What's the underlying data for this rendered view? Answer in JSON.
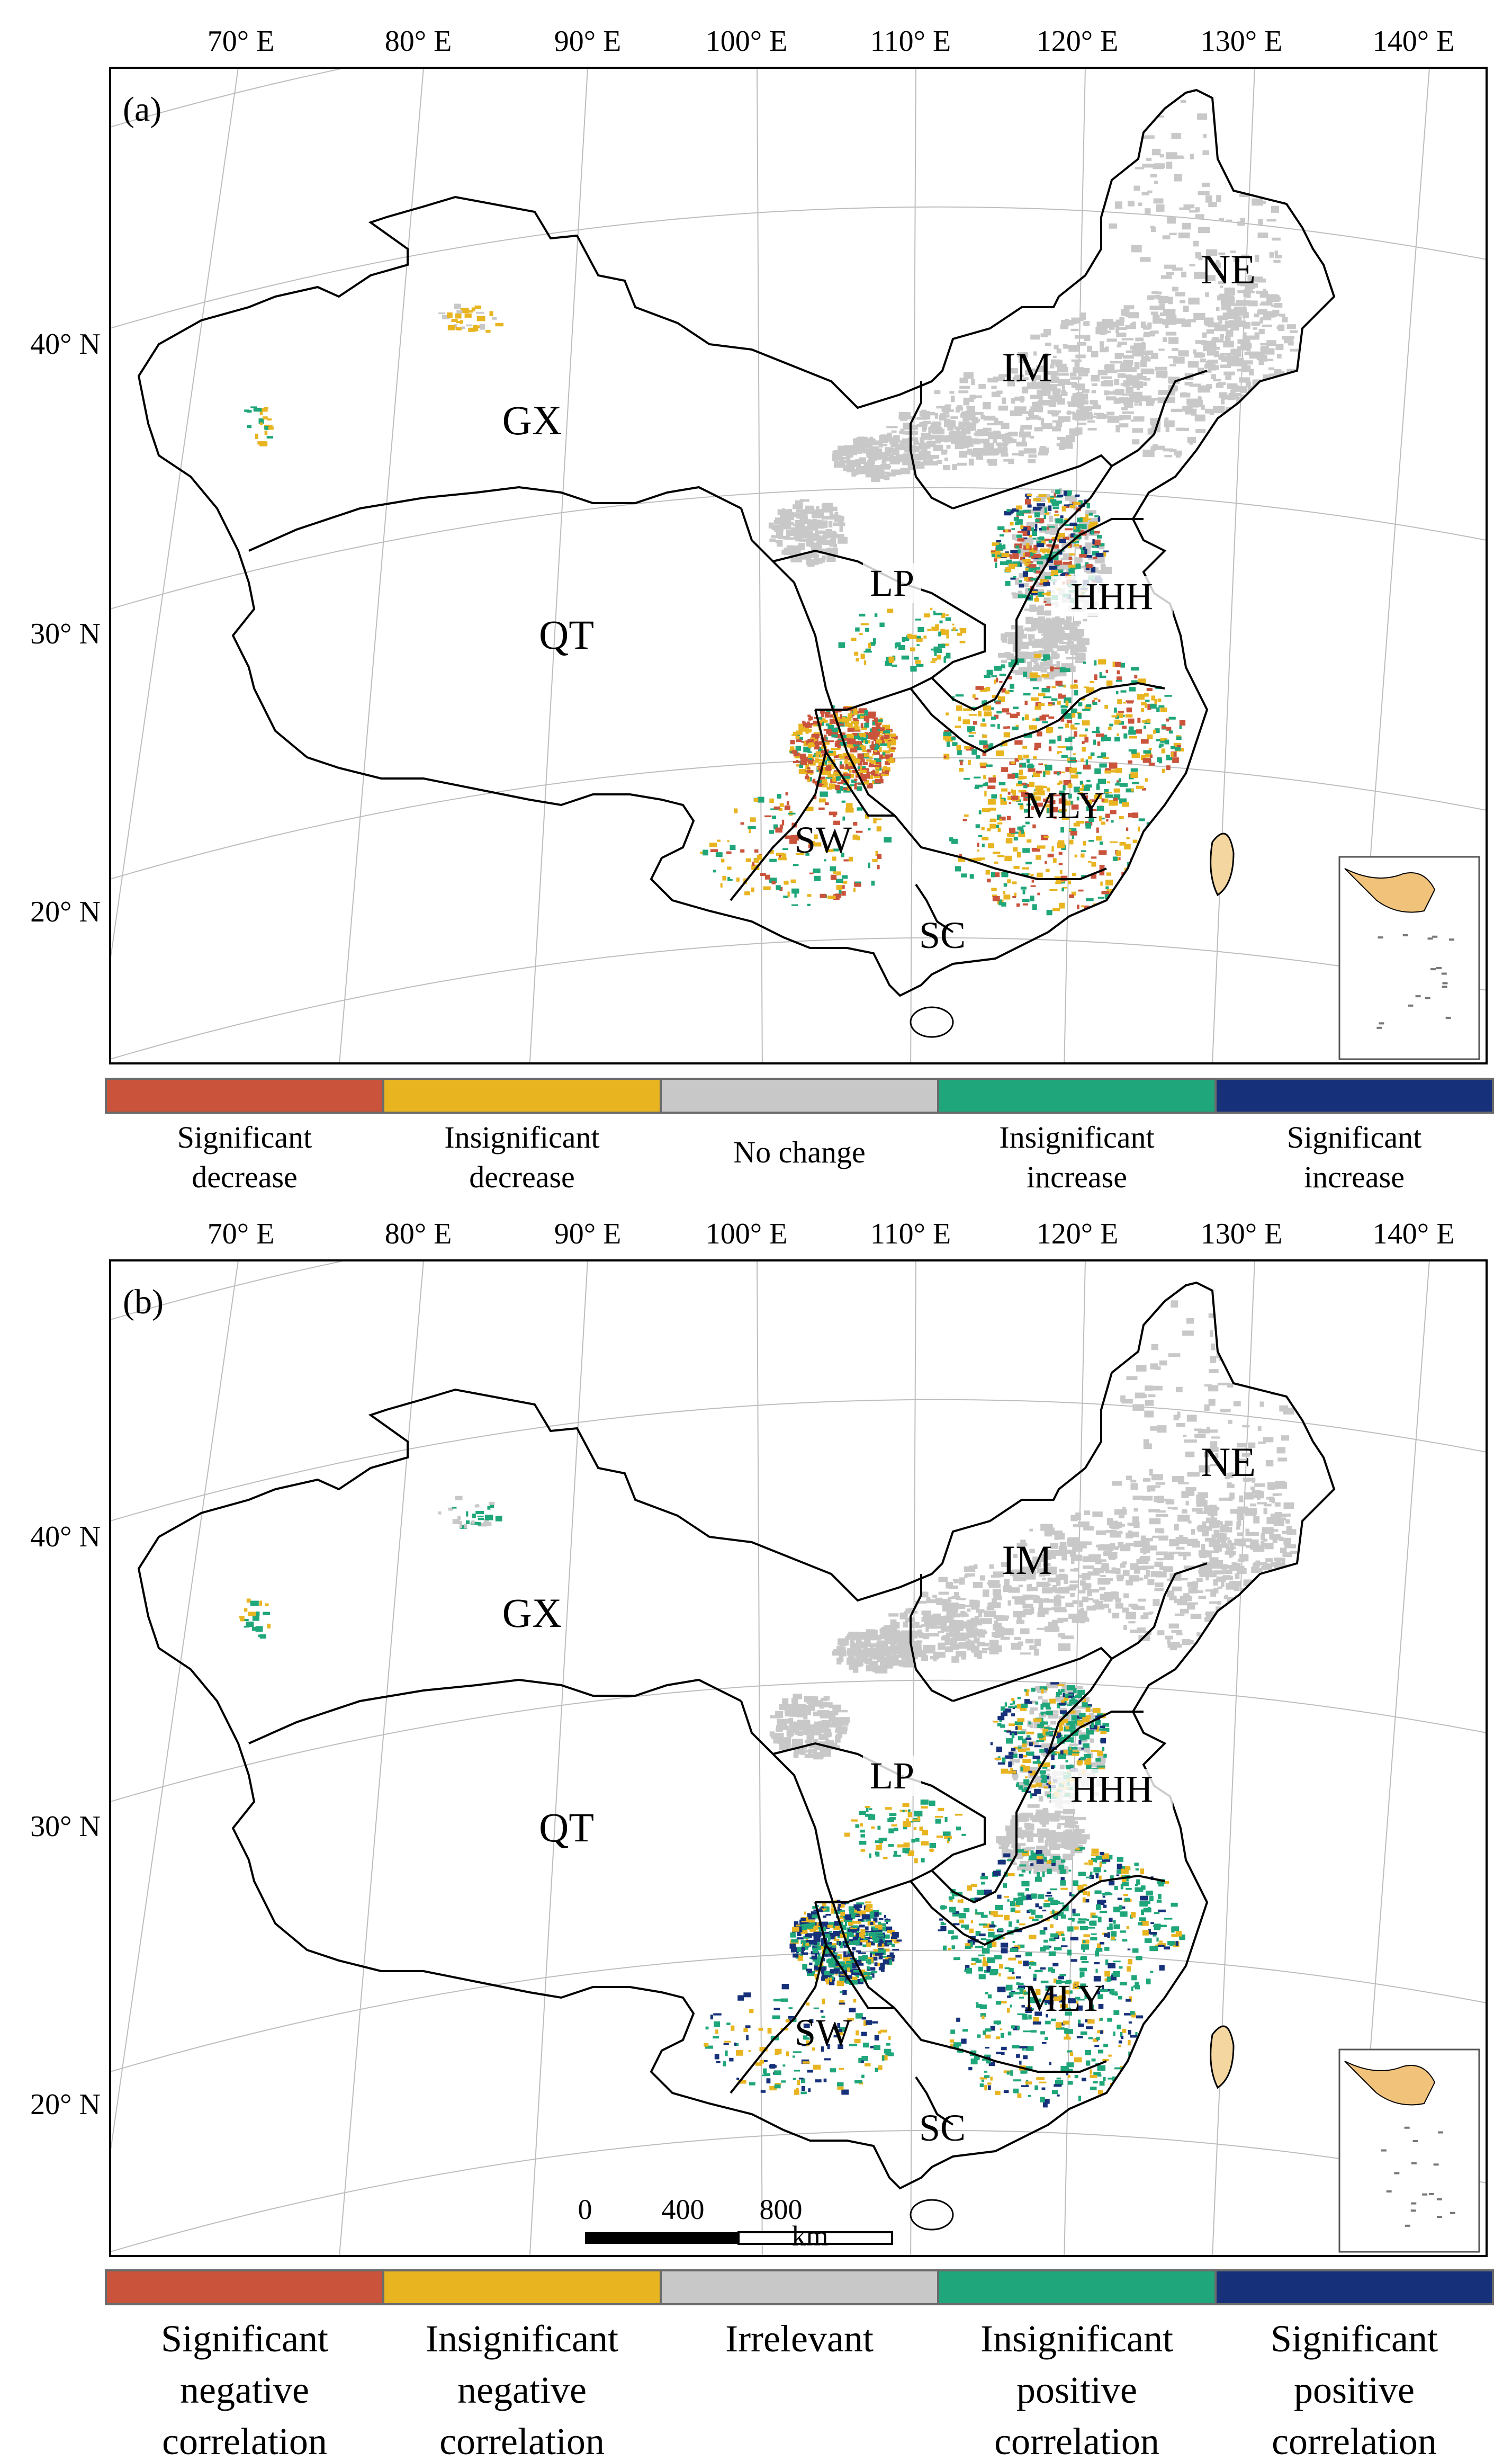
{
  "figure": {
    "panels": [
      {
        "id": "a",
        "panel_label": "(a)",
        "lon_ticks": [
          "70° E",
          "80° E",
          "90° E",
          "100° E",
          "110° E",
          "120° E",
          "130° E",
          "140° E"
        ],
        "lat_ticks": [
          "40° N",
          "30° N",
          "20° N"
        ],
        "regions": [
          "NE",
          "IM",
          "GX",
          "QT",
          "LP",
          "HHH",
          "SW",
          "MLY",
          "SC"
        ],
        "legend": [
          {
            "label_lines": [
              "Significant",
              "decrease"
            ],
            "color": "#c9533b"
          },
          {
            "label_lines": [
              "Insignificant",
              "decrease"
            ],
            "color": "#e8b420"
          },
          {
            "label_lines": [
              "No change"
            ],
            "color": "#c8c8c8"
          },
          {
            "label_lines": [
              "Insignificant",
              "increase"
            ],
            "color": "#1fa67a"
          },
          {
            "label_lines": [
              "Significant",
              "increase"
            ],
            "color": "#16317a"
          }
        ]
      },
      {
        "id": "b",
        "panel_label": "(b)",
        "lon_ticks": [
          "70° E",
          "80° E",
          "90° E",
          "100° E",
          "110° E",
          "120° E",
          "130° E",
          "140° E"
        ],
        "lat_ticks": [
          "40° N",
          "30° N",
          "20° N"
        ],
        "regions": [
          "NE",
          "IM",
          "GX",
          "QT",
          "LP",
          "HHH",
          "SW",
          "MLY",
          "SC"
        ],
        "scale_bar": {
          "ticks": [
            "0",
            "400",
            "800"
          ],
          "unit": "km"
        },
        "legend": [
          {
            "label_lines": [
              "Significant",
              "negative",
              "correlation"
            ],
            "color": "#c9533b"
          },
          {
            "label_lines": [
              "Insignificant",
              "negative",
              "correlation"
            ],
            "color": "#e8b420"
          },
          {
            "label_lines": [
              "Irrelevant"
            ],
            "color": "#c8c8c8"
          },
          {
            "label_lines": [
              "Insignificant",
              "positive",
              "correlation"
            ],
            "color": "#1fa67a"
          },
          {
            "label_lines": [
              "Significant",
              "positive",
              "correlation"
            ],
            "color": "#16317a"
          }
        ]
      }
    ]
  }
}
